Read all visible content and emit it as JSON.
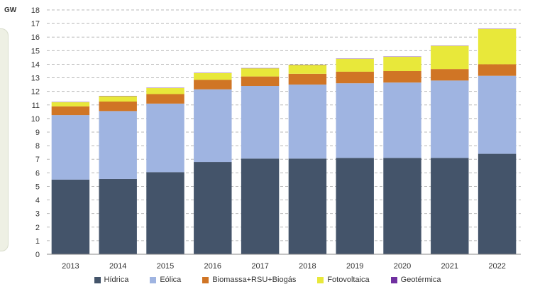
{
  "chart_data": {
    "type": "bar",
    "stacked": true,
    "ylabel": "GW",
    "ylim": [
      0,
      18
    ],
    "yticks": [
      0,
      1,
      2,
      3,
      4,
      5,
      6,
      7,
      8,
      9,
      10,
      11,
      12,
      13,
      14,
      15,
      16,
      17,
      18
    ],
    "grid": "horizontal dashed",
    "legend_position": "bottom",
    "categories": [
      "2013",
      "2014",
      "2015",
      "2016",
      "2017",
      "2018",
      "2019",
      "2020",
      "2021",
      "2022"
    ],
    "series": [
      {
        "name": "Hídrica",
        "color": "#44546a",
        "values": [
          5.5,
          5.55,
          6.05,
          6.8,
          7.05,
          7.05,
          7.1,
          7.1,
          7.1,
          7.4
        ]
      },
      {
        "name": "Eólica",
        "color": "#9fb4e1",
        "values": [
          4.75,
          5.0,
          5.05,
          5.35,
          5.35,
          5.45,
          5.5,
          5.55,
          5.7,
          5.75
        ]
      },
      {
        "name": "Biomassa+RSU+Biogás",
        "color": "#d07525",
        "values": [
          0.65,
          0.7,
          0.7,
          0.7,
          0.7,
          0.8,
          0.85,
          0.85,
          0.85,
          0.85
        ]
      },
      {
        "name": "Fotovoltaica",
        "color": "#e8e83a",
        "values": [
          0.3,
          0.4,
          0.45,
          0.5,
          0.6,
          0.65,
          0.95,
          1.05,
          1.7,
          2.6
        ]
      },
      {
        "name": "Geotérmica",
        "color": "#7030a0",
        "values": [
          0.02,
          0.02,
          0.02,
          0.02,
          0.02,
          0.02,
          0.02,
          0.02,
          0.02,
          0.02
        ]
      }
    ]
  }
}
